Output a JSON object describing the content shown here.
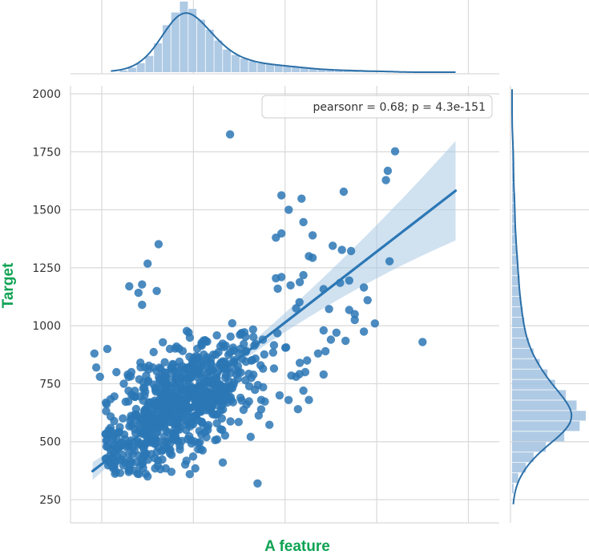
{
  "chart_data": {
    "type": "scatter",
    "title": "",
    "xlabel": "A feature",
    "ylabel": "Target",
    "ylim": [
      220,
      2050
    ],
    "yticks": [
      250,
      500,
      750,
      1000,
      1250,
      1500,
      1750,
      2000
    ],
    "xtick_labels": [],
    "grid": true,
    "annotation": "pearsonr = 0.68; p = 4.3e-151",
    "annotation_placement": "top-right",
    "colors": {
      "points": "#2b77b5",
      "line": "#2b77b5",
      "band": "#a9c8e4",
      "hist": "#a6c4e1",
      "kde": "#2b6fa8",
      "grid": "#d9d9d9",
      "axis_title": "#0fa353"
    },
    "regression": {
      "x": [
        0.5,
        20.3
      ],
      "y": [
        373,
        1582
      ]
    },
    "points": [
      [
        8.0,
        1825
      ],
      [
        17.0,
        1752
      ],
      [
        16.6,
        1668
      ],
      [
        16.5,
        1628
      ],
      [
        16.7,
        1278
      ],
      [
        18.5,
        930
      ],
      [
        14.2,
        1578
      ],
      [
        10.8,
        1562
      ],
      [
        11.9,
        1548
      ],
      [
        11.2,
        1500
      ],
      [
        12.0,
        1447
      ],
      [
        10.8,
        1398
      ],
      [
        12.5,
        1390
      ],
      [
        10.5,
        1380
      ],
      [
        4.1,
        1352
      ],
      [
        13.6,
        1345
      ],
      [
        14.1,
        1327
      ],
      [
        12.3,
        1300
      ],
      [
        12.5,
        1293
      ],
      [
        14.6,
        1322
      ],
      [
        3.5,
        1268
      ],
      [
        12.0,
        1218
      ],
      [
        10.8,
        1210
      ],
      [
        10.5,
        1205
      ],
      [
        11.8,
        1188
      ],
      [
        11.3,
        1174
      ],
      [
        10.6,
        1160
      ],
      [
        14.5,
        1195
      ],
      [
        14.0,
        1185
      ],
      [
        13.1,
        1158
      ],
      [
        15.5,
        1110
      ],
      [
        15.3,
        1165
      ],
      [
        11.6,
        1075
      ],
      [
        13.4,
        1072
      ],
      [
        14.5,
        1068
      ],
      [
        3.2,
        1178
      ],
      [
        3.0,
        1142
      ],
      [
        4.0,
        1150
      ],
      [
        3.2,
        1090
      ],
      [
        2.5,
        1170
      ],
      [
        14.8,
        1050
      ],
      [
        14.8,
        1025
      ],
      [
        15.9,
        1010
      ],
      [
        15.3,
        975
      ],
      [
        14.3,
        935
      ],
      [
        13.1,
        980
      ],
      [
        13.8,
        970
      ],
      [
        13.5,
        940
      ],
      [
        13.2,
        890
      ],
      [
        12.8,
        880
      ],
      [
        12.2,
        850
      ],
      [
        11.8,
        840
      ],
      [
        13.1,
        790
      ],
      [
        12.1,
        800
      ],
      [
        11.6,
        780
      ],
      [
        12.0,
        720
      ],
      [
        12.3,
        680
      ],
      [
        11.7,
        640
      ],
      [
        10.7,
        700
      ],
      [
        9.8,
        735
      ],
      [
        9.7,
        680
      ],
      [
        8.9,
        660
      ],
      [
        1.3,
        900
      ],
      [
        0.6,
        880
      ],
      [
        0.7,
        820
      ],
      [
        1.8,
        800
      ],
      [
        0.9,
        780
      ],
      [
        2.2,
        750
      ],
      [
        4.8,
        370
      ],
      [
        3.5,
        350
      ],
      [
        2.0,
        365
      ],
      [
        7.6,
        410
      ],
      [
        5.8,
        360
      ],
      [
        6.1,
        385
      ],
      [
        9.5,
        320
      ]
    ],
    "cloud": {
      "cx": 5.2,
      "cy": 660,
      "sx": 2.2,
      "sy": 145
    },
    "cloud_count": 780,
    "marginal_x": {
      "range": [
        1.5,
        20.3
      ],
      "values": [
        0,
        2,
        5,
        10,
        18,
        32,
        52,
        66,
        78,
        70,
        58,
        47,
        35,
        25,
        19,
        15,
        12,
        10,
        9,
        8,
        7,
        6,
        5,
        4,
        3,
        3,
        2,
        2,
        2,
        1,
        1,
        1,
        1,
        0,
        0,
        0,
        0,
        0,
        0,
        0
      ]
    },
    "marginal_y": {
      "range": [
        230,
        2020
      ],
      "values": [
        0,
        1,
        4,
        9,
        14,
        22,
        34,
        44,
        48,
        42,
        35,
        28,
        23,
        18,
        14,
        11,
        9,
        8,
        7,
        6,
        5,
        5,
        4,
        4,
        3,
        3,
        2,
        2,
        2,
        2,
        1,
        1,
        1,
        1,
        1,
        0,
        0,
        0,
        0,
        0
      ]
    }
  }
}
